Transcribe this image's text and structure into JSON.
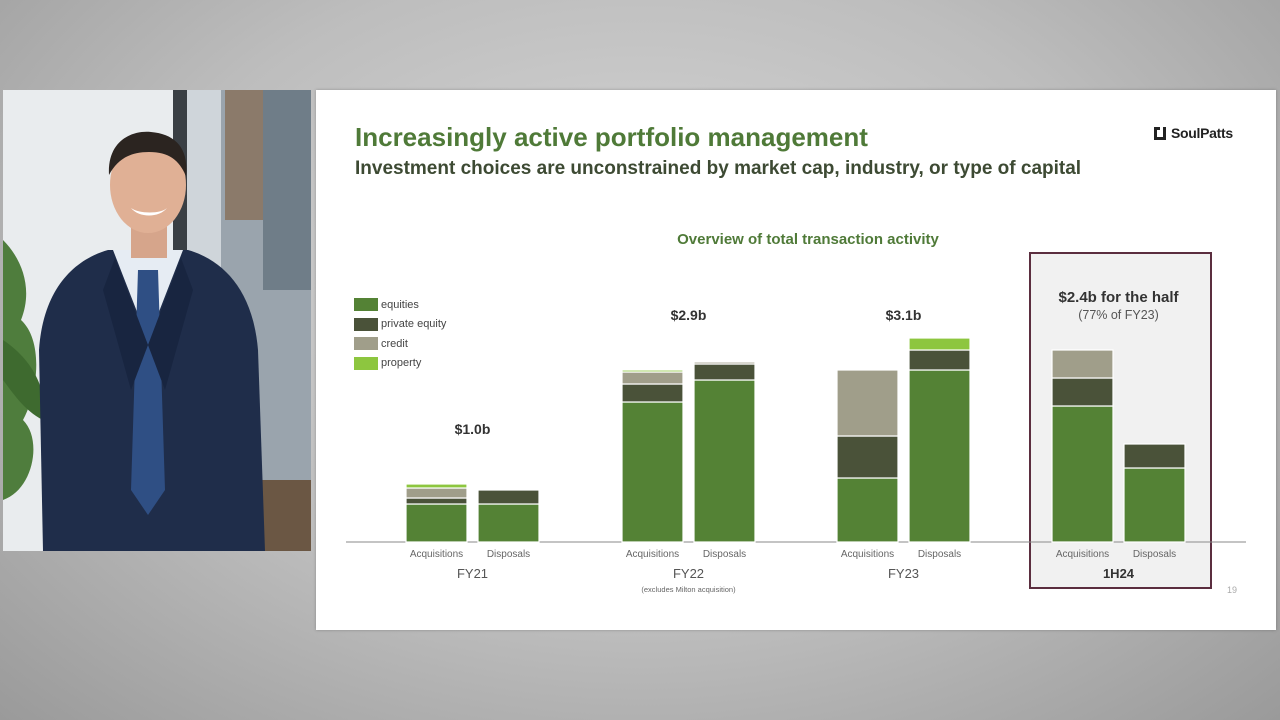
{
  "slide": {
    "title": "Increasingly active portfolio management",
    "subtitle": "Investment choices are unconstrained by market cap, industry, or type of capital",
    "logo_text": "SoulPatts",
    "page_number": "19"
  },
  "chart_data": {
    "type": "bar",
    "stacked": true,
    "title": "Overview of total transaction activity",
    "series": [
      {
        "name": "equities",
        "color": "#548235"
      },
      {
        "name": "private equity",
        "color": "#4a5239"
      },
      {
        "name": "credit",
        "color": "#a09e8a"
      },
      {
        "name": "property",
        "color": "#8dc63f"
      }
    ],
    "groups": [
      {
        "label": "FY21",
        "note": "",
        "total_label": "$1.0b",
        "total_sublabel": "",
        "highlight": false,
        "bars": [
          {
            "label": "Acquisitions",
            "values": [
              0.19,
              0.03,
              0.05,
              0.02
            ]
          },
          {
            "label": "Disposals",
            "values": [
              0.19,
              0.07,
              0,
              0
            ]
          }
        ]
      },
      {
        "label": "FY22",
        "note": "(excludes Milton acquisition)",
        "total_label": "$2.9b",
        "total_sublabel": "",
        "highlight": false,
        "bars": [
          {
            "label": "Acquisitions",
            "values": [
              0.7,
              0.09,
              0.06,
              0.01
            ]
          },
          {
            "label": "Disposals",
            "values": [
              0.81,
              0.08,
              0.01,
              0
            ]
          }
        ]
      },
      {
        "label": "FY23",
        "note": "",
        "total_label": "$3.1b",
        "total_sublabel": "",
        "highlight": false,
        "bars": [
          {
            "label": "Acquisitions",
            "values": [
              0.32,
              0.21,
              0.33,
              0
            ]
          },
          {
            "label": "Disposals",
            "values": [
              0.86,
              0.1,
              0,
              0.06
            ]
          }
        ]
      },
      {
        "label": "1H24",
        "note": "",
        "total_label": "$2.4b for the half",
        "total_sublabel": "(77% of FY23)",
        "highlight": true,
        "bars": [
          {
            "label": "Acquisitions",
            "values": [
              0.68,
              0.14,
              0.14,
              0
            ]
          },
          {
            "label": "Disposals",
            "values": [
              0.37,
              0.12,
              0,
              0
            ]
          }
        ]
      }
    ],
    "ylim": [
      0,
      1
    ],
    "grid": false,
    "legend_position": "top-left"
  }
}
